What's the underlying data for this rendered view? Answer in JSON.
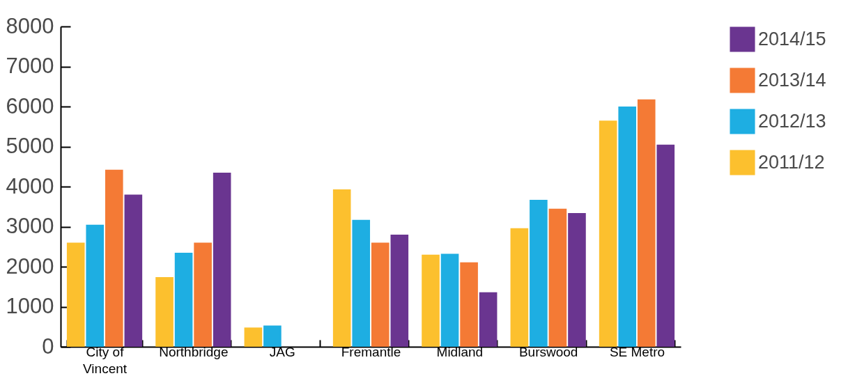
{
  "chart_data": {
    "type": "bar",
    "categories": [
      "City of Vincent",
      "Northbridge",
      "JAG",
      "Fremantle",
      "Midland",
      "Burswood",
      "SE Metro"
    ],
    "series": [
      {
        "name": "2011/12",
        "color": "#fcc02e",
        "values": [
          2600,
          1740,
          480,
          3930,
          2300,
          2960,
          5650
        ]
      },
      {
        "name": "2012/13",
        "color": "#1eaee2",
        "values": [
          3050,
          2350,
          530,
          3170,
          2320,
          3670,
          6000
        ]
      },
      {
        "name": "2013/14",
        "color": "#f47a35",
        "values": [
          4420,
          2600,
          null,
          2600,
          2110,
          3450,
          6180
        ]
      },
      {
        "name": "2014/15",
        "color": "#6a3590",
        "values": [
          3800,
          4350,
          null,
          2800,
          1360,
          3340,
          5050
        ]
      }
    ],
    "ylim": [
      0,
      8000
    ],
    "yticks": [
      0,
      1000,
      2000,
      3000,
      4000,
      5000,
      6000,
      7000,
      8000
    ],
    "grid": false,
    "legend": "right"
  }
}
